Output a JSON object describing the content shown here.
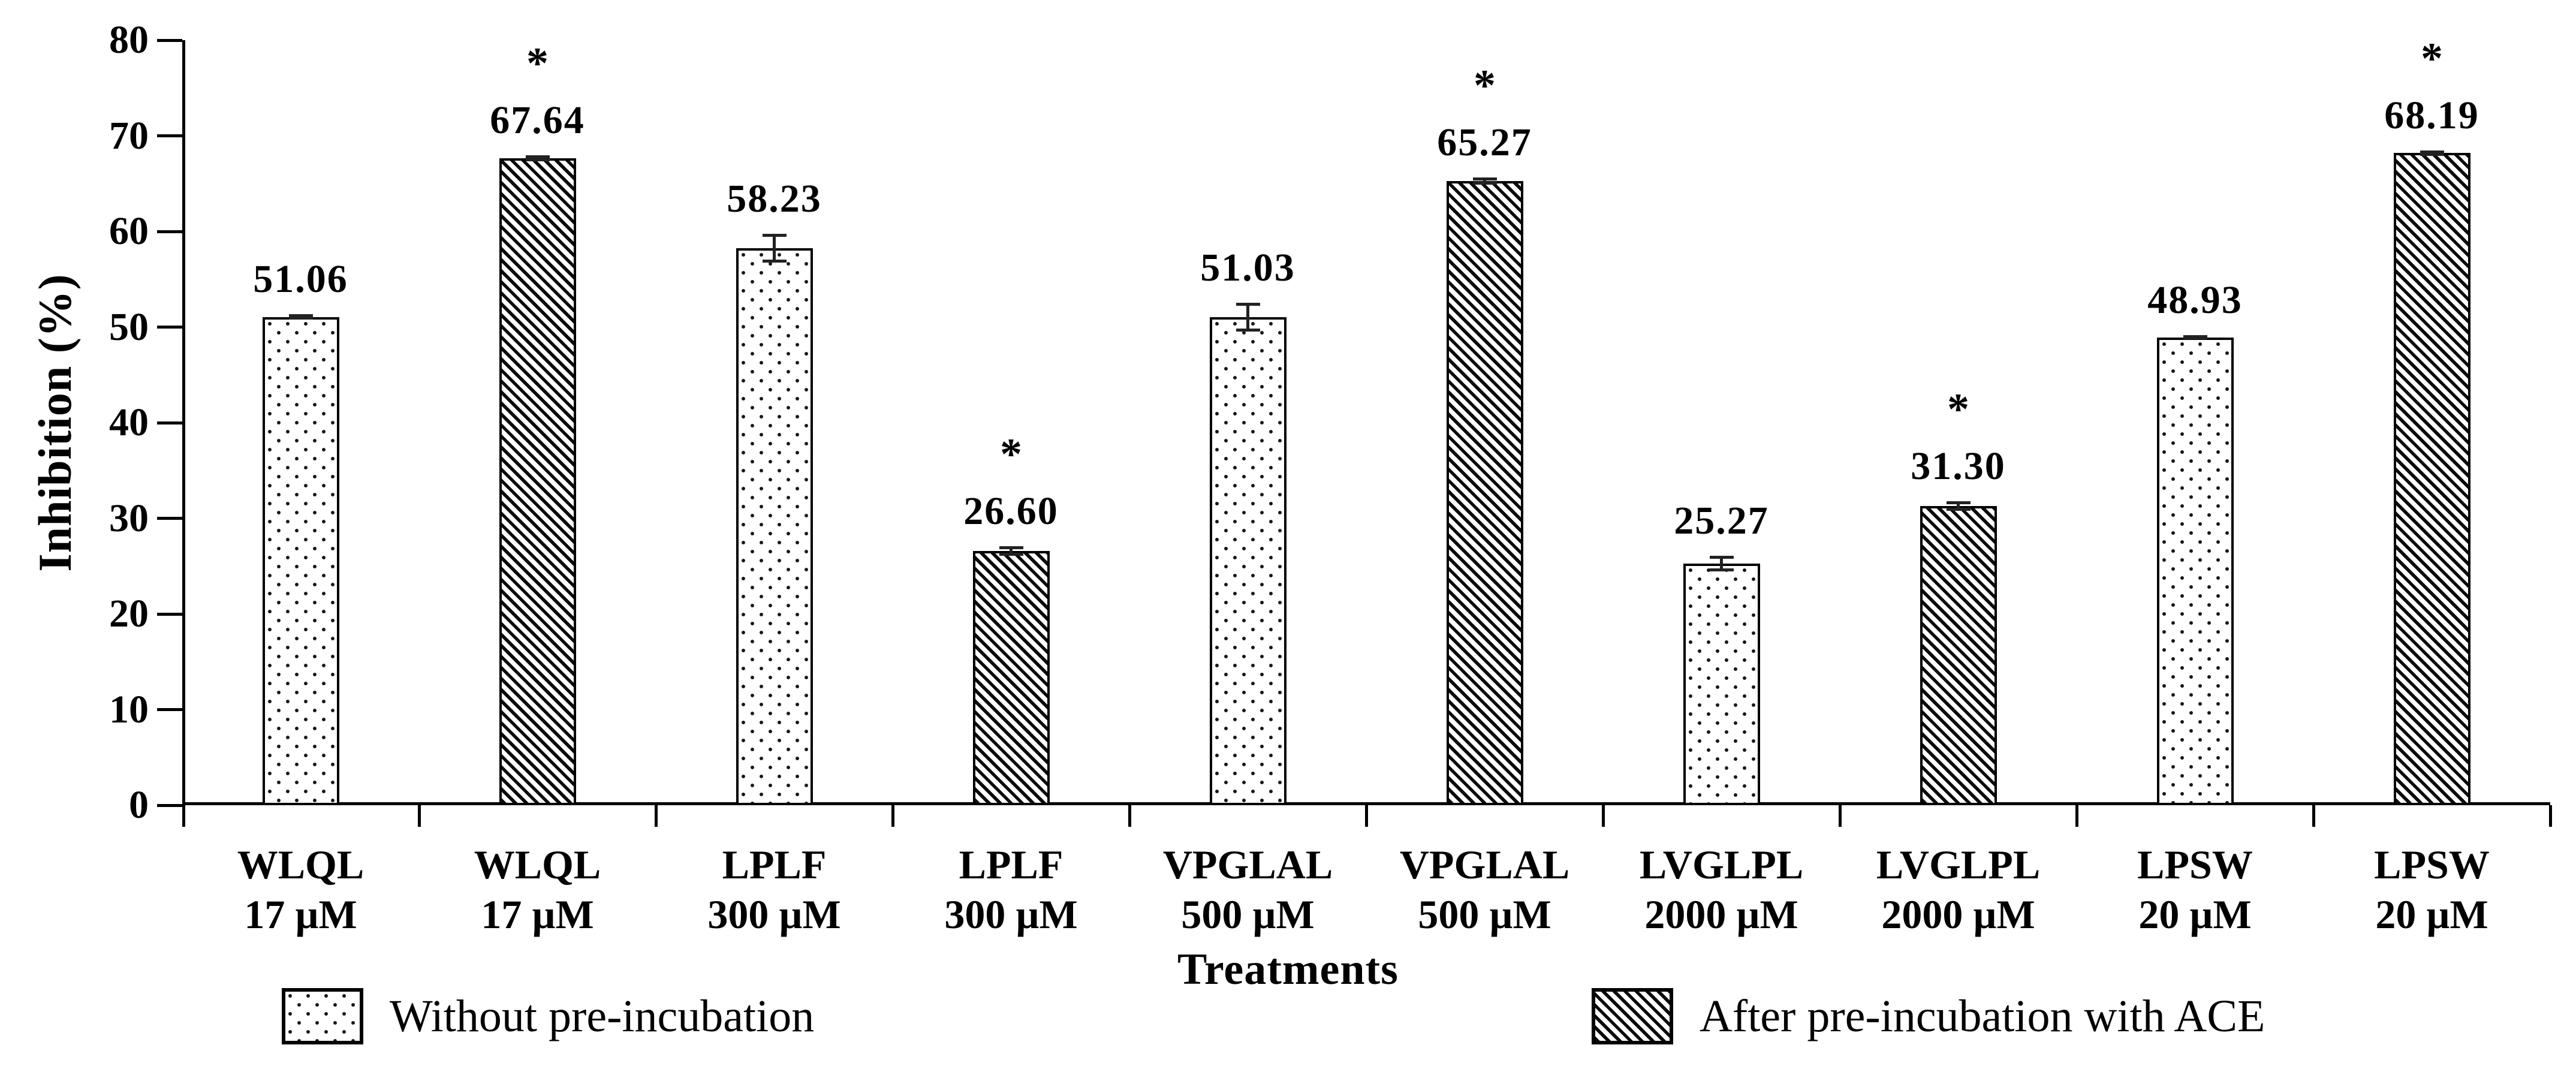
{
  "chart_data": {
    "type": "bar",
    "title": "",
    "ylabel": "Inhibition (%)",
    "xlabel": "Treatments",
    "ylim": [
      0,
      80
    ],
    "ytick_step": 10,
    "yticks": [
      0,
      10,
      20,
      30,
      40,
      50,
      60,
      70,
      80
    ],
    "grid": "off",
    "legend_position": "bottom",
    "significance_marker": "*",
    "colors": {
      "ink": "#000000",
      "background": "#ffffff",
      "error_bar": "#222222"
    },
    "series": [
      {
        "name": "Without pre-incubation",
        "pattern": "dots"
      },
      {
        "name": "After pre-incubation with ACE",
        "pattern": "diagonal-hatch"
      }
    ],
    "bars": [
      {
        "category": "WLQL",
        "dose": "17 µM",
        "series": 0,
        "value": 51.06,
        "label": "51.06",
        "error": 0.3,
        "significant": false
      },
      {
        "category": "WLQL",
        "dose": "17 µM",
        "series": 1,
        "value": 67.64,
        "label": "67.64",
        "error": 0.3,
        "significant": true
      },
      {
        "category": "LPLF",
        "dose": "300 µM",
        "series": 0,
        "value": 58.23,
        "label": "58.23",
        "error": 1.5,
        "significant": false
      },
      {
        "category": "LPLF",
        "dose": "300 µM",
        "series": 1,
        "value": 26.6,
        "label": "26.60",
        "error": 0.5,
        "significant": true
      },
      {
        "category": "VPGLAL",
        "dose": "500 µM",
        "series": 0,
        "value": 51.03,
        "label": "51.03",
        "error": 1.5,
        "significant": false
      },
      {
        "category": "VPGLAL",
        "dose": "500 µM",
        "series": 1,
        "value": 65.27,
        "label": "65.27",
        "error": 0.4,
        "significant": true
      },
      {
        "category": "LVGLPL",
        "dose": "2000 µM",
        "series": 0,
        "value": 25.27,
        "label": "25.27",
        "error": 0.8,
        "significant": false
      },
      {
        "category": "LVGLPL",
        "dose": "2000 µM",
        "series": 1,
        "value": 31.3,
        "label": "31.30",
        "error": 0.5,
        "significant": true
      },
      {
        "category": "LPSW",
        "dose": "20 µM",
        "series": 0,
        "value": 48.93,
        "label": "48.93",
        "error": 0.2,
        "significant": false
      },
      {
        "category": "LPSW",
        "dose": "20 µM",
        "series": 1,
        "value": 68.19,
        "label": "68.19",
        "error": 0.3,
        "significant": true
      }
    ]
  }
}
